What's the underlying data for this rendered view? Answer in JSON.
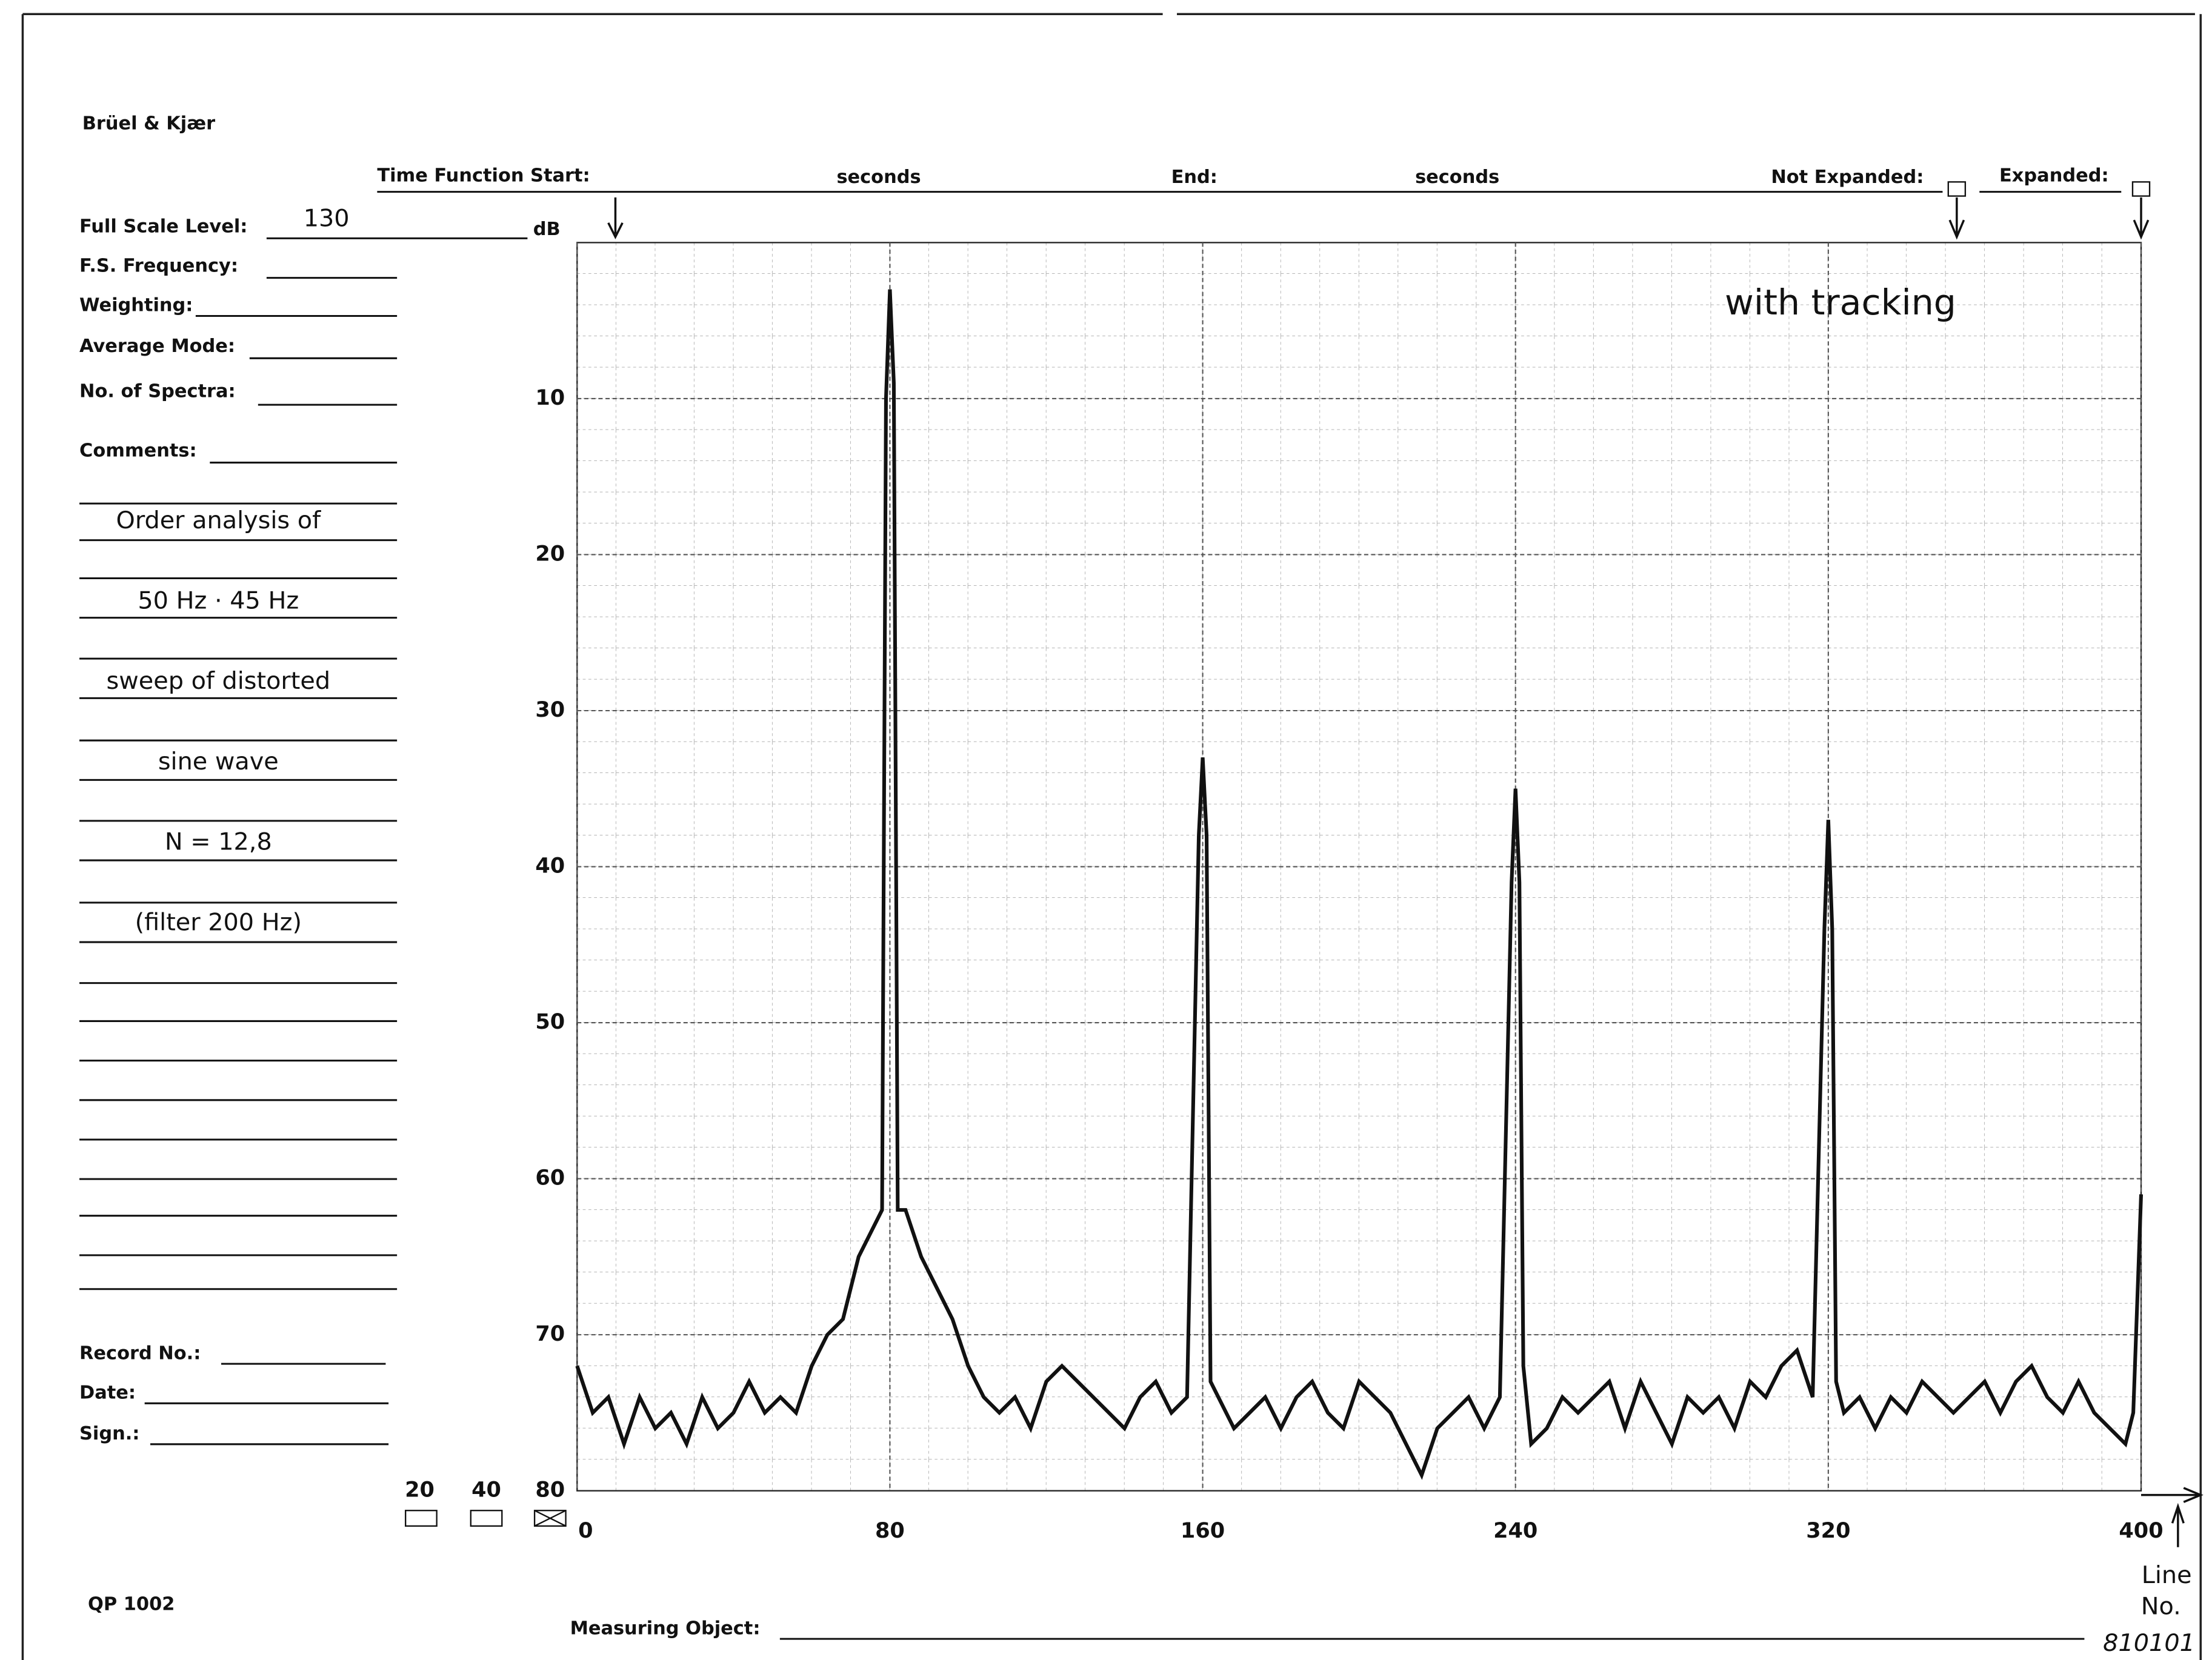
{
  "form": {
    "brand": "Brüel & Kjær",
    "time_function_start": "Time Function Start:",
    "seconds_1": "seconds",
    "end": "End:",
    "seconds_2": "seconds",
    "not_expanded": "Not Expanded:",
    "expanded": "Expanded:",
    "full_scale_level": "Full Scale Level:",
    "full_scale_value": "130",
    "db_unit": "dB",
    "fs_frequency": "F.S. Frequency:",
    "weighting": "Weighting:",
    "average_mode": "Average Mode:",
    "no_of_spectra": "No. of Spectra:",
    "comments": "Comments:",
    "comment_lines": [
      "Order analysis of",
      "50 Hz · 45 Hz",
      "sweep of distorted",
      "sine wave",
      "N = 12,8",
      "(filter 200 Hz)"
    ],
    "record_no": "Record No.:",
    "date": "Date:",
    "sign": "Sign.:",
    "range_options": [
      "20",
      "40",
      "80"
    ],
    "form_code": "QP 1002",
    "measuring_object": "Measuring Object:",
    "x_label_line1": "Line",
    "x_label_line2": "No.",
    "serial": "810101"
  },
  "chart_data": {
    "type": "line",
    "annotation": "with tracking",
    "x": [
      0,
      4,
      8,
      12,
      16,
      20,
      24,
      28,
      32,
      36,
      40,
      44,
      48,
      52,
      56,
      60,
      64,
      68,
      72,
      76,
      78,
      79,
      80,
      81,
      82,
      84,
      88,
      92,
      96,
      100,
      104,
      108,
      112,
      116,
      120,
      124,
      128,
      132,
      136,
      140,
      144,
      148,
      152,
      156,
      159,
      160,
      161,
      162,
      164,
      168,
      172,
      176,
      180,
      184,
      188,
      192,
      196,
      200,
      204,
      208,
      212,
      216,
      220,
      224,
      228,
      232,
      236,
      239,
      240,
      241,
      242,
      244,
      248,
      252,
      256,
      260,
      264,
      268,
      272,
      276,
      280,
      284,
      288,
      292,
      296,
      300,
      304,
      308,
      312,
      316,
      319,
      320,
      321,
      322,
      324,
      328,
      332,
      336,
      340,
      344,
      348,
      352,
      356,
      360,
      364,
      368,
      372,
      376,
      380,
      384,
      388,
      392,
      396,
      398,
      400
    ],
    "series": [
      {
        "color": "#111111",
        "values": [
          72,
          75,
          74,
          77,
          74,
          76,
          75,
          77,
          74,
          76,
          75,
          73,
          75,
          74,
          75,
          72,
          70,
          69,
          65,
          63,
          62,
          10,
          3,
          9,
          62,
          62,
          65,
          67,
          69,
          72,
          74,
          75,
          74,
          76,
          73,
          72,
          73,
          74,
          75,
          76,
          74,
          73,
          75,
          74,
          38,
          33,
          38,
          73,
          74,
          76,
          75,
          74,
          76,
          74,
          73,
          75,
          76,
          73,
          74,
          75,
          77,
          79,
          76,
          75,
          74,
          76,
          74,
          41,
          35,
          41,
          72,
          77,
          76,
          74,
          75,
          74,
          73,
          76,
          73,
          75,
          77,
          74,
          75,
          74,
          76,
          73,
          74,
          72,
          71,
          74,
          44,
          37,
          44,
          73,
          75,
          74,
          76,
          74,
          75,
          73,
          74,
          75,
          74,
          73,
          75,
          73,
          72,
          74,
          75,
          73,
          75,
          76,
          77,
          75,
          61
        ]
      }
    ],
    "xlim": [
      0,
      400
    ],
    "xticks": [
      0,
      80,
      160,
      240,
      320,
      400
    ],
    "ylim": [
      80,
      0
    ],
    "yticks": [
      10,
      20,
      30,
      40,
      50,
      60,
      70
    ],
    "grid": true
  }
}
